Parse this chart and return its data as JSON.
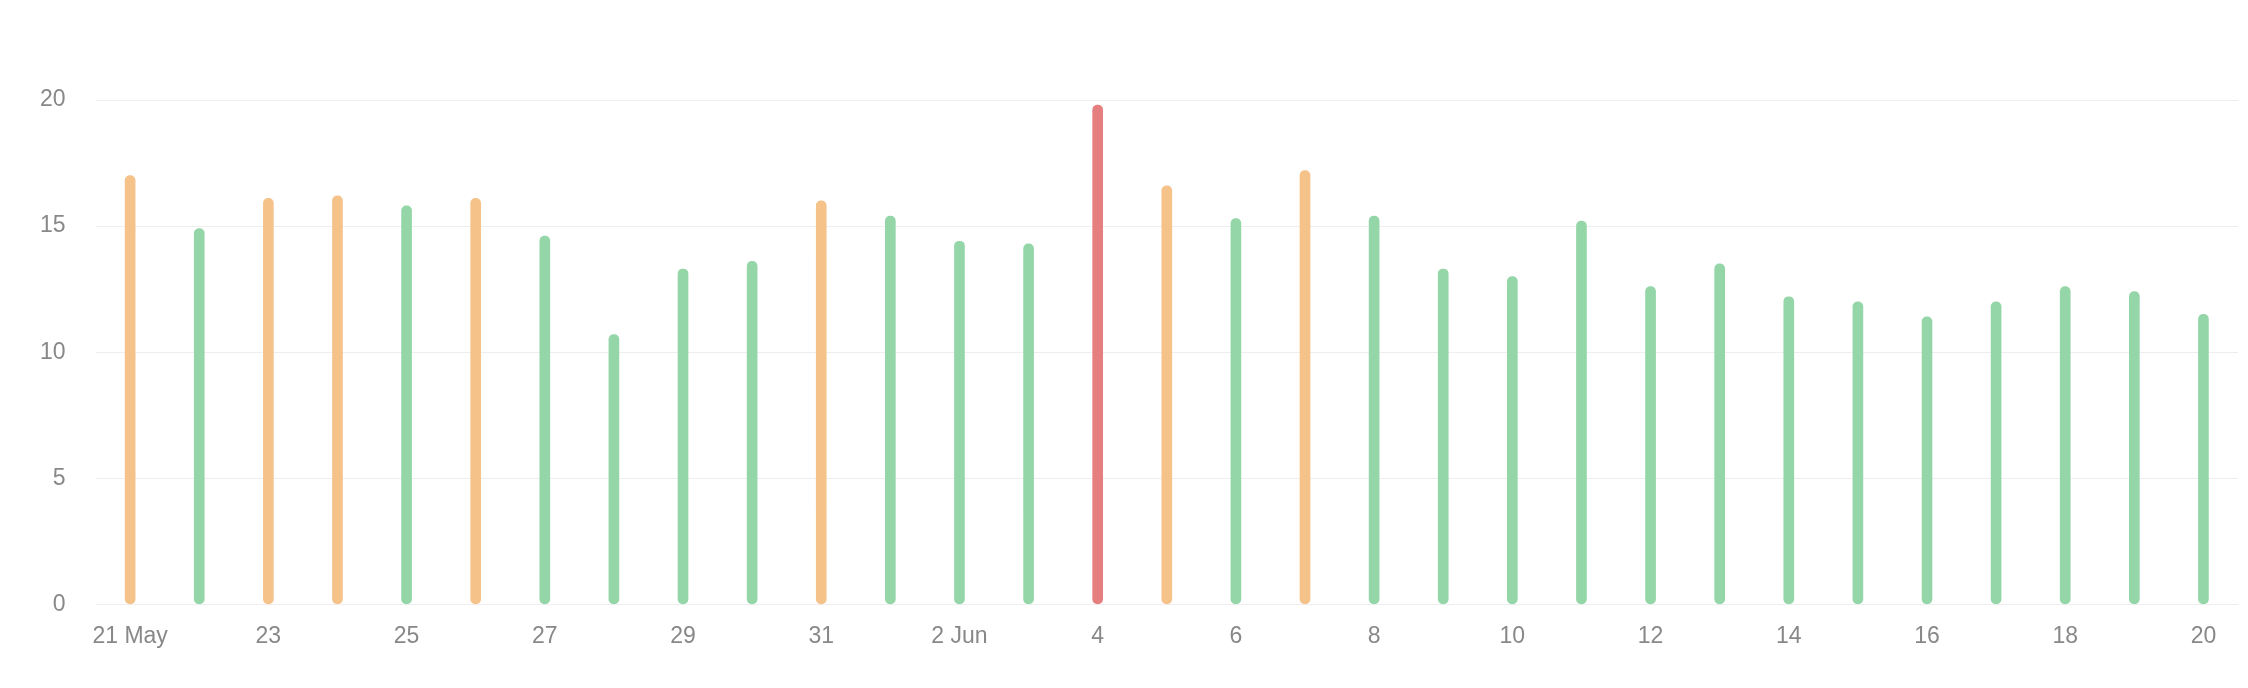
{
  "chart_data": {
    "type": "bar",
    "categories": [
      "21 May",
      null,
      "23",
      null,
      "25",
      null,
      "27",
      null,
      "29",
      null,
      "31",
      null,
      "2 Jun",
      null,
      "4",
      null,
      "6",
      null,
      "8",
      null,
      "10",
      null,
      "12",
      null,
      "14",
      null,
      "16",
      null,
      "18",
      null,
      "20"
    ],
    "values": [
      17.0,
      14.9,
      16.1,
      16.2,
      15.8,
      16.1,
      14.6,
      10.7,
      13.3,
      13.6,
      16.0,
      15.4,
      14.4,
      14.3,
      19.8,
      16.6,
      15.3,
      17.2,
      15.4,
      13.3,
      13.0,
      15.2,
      12.6,
      13.5,
      12.2,
      12.0,
      11.4,
      12.0,
      12.6,
      12.4,
      11.5
    ],
    "colors": [
      "#f5c28a",
      "#94d6a8",
      "#f5c28a",
      "#f5c28a",
      "#94d6a8",
      "#f5c28a",
      "#94d6a8",
      "#94d6a8",
      "#94d6a8",
      "#94d6a8",
      "#f5c28a",
      "#94d6a8",
      "#94d6a8",
      "#94d6a8",
      "#e57f7f",
      "#f5c28a",
      "#94d6a8",
      "#f5c28a",
      "#94d6a8",
      "#94d6a8",
      "#94d6a8",
      "#94d6a8",
      "#94d6a8",
      "#94d6a8",
      "#94d6a8",
      "#94d6a8",
      "#94d6a8",
      "#94d6a8",
      "#94d6a8",
      "#94d6a8",
      "#94d6a8"
    ],
    "ylim": [
      0,
      20
    ],
    "yticks": [
      0,
      5,
      10,
      15,
      20
    ],
    "grid": "y"
  }
}
